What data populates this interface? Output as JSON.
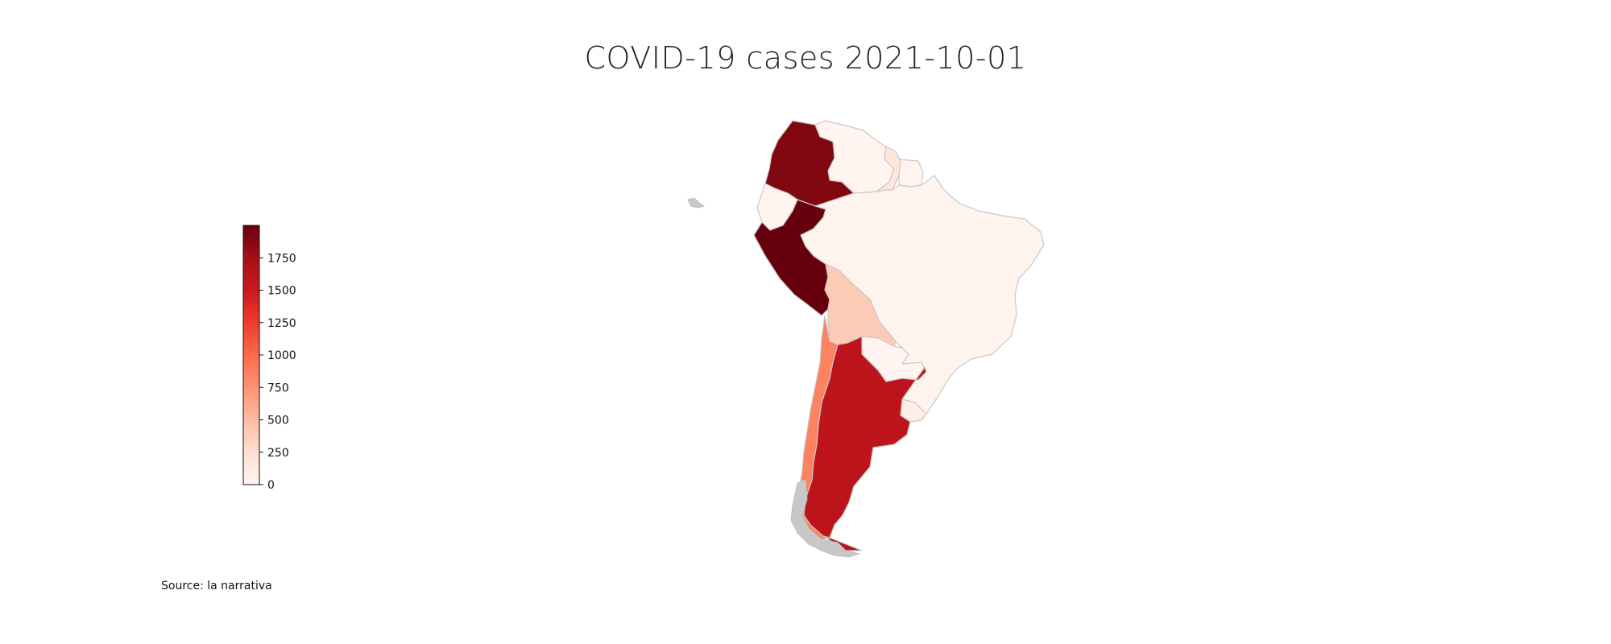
{
  "title": "COVID-19 cases 2021-10-01",
  "source": "Source: la narrativa",
  "colorbar": {
    "min": 0,
    "max": 2000,
    "ticks": [
      "0",
      "250",
      "500",
      "750",
      "1000",
      "1250",
      "1500",
      "1750"
    ],
    "colors": [
      "#fff5f0",
      "#fee0d2",
      "#fcbba1",
      "#fc9272",
      "#fb6a4a",
      "#ef3b2c",
      "#cb181d",
      "#a50f15",
      "#67000d"
    ]
  },
  "countries": [
    {
      "name": "Venezuela",
      "value": 10
    },
    {
      "name": "Guyana",
      "value": 180
    },
    {
      "name": "Suriname",
      "value": 20
    },
    {
      "name": "Colombia",
      "value": 1900
    },
    {
      "name": "Ecuador",
      "value": 10
    },
    {
      "name": "Peru",
      "value": 2000
    },
    {
      "name": "Brazil",
      "value": 20
    },
    {
      "name": "Bolivia",
      "value": 400
    },
    {
      "name": "Paraguay",
      "value": 10
    },
    {
      "name": "Uruguay",
      "value": 80
    },
    {
      "name": "Chile",
      "value": 850
    },
    {
      "name": "Argentina",
      "value": 1600
    }
  ]
}
